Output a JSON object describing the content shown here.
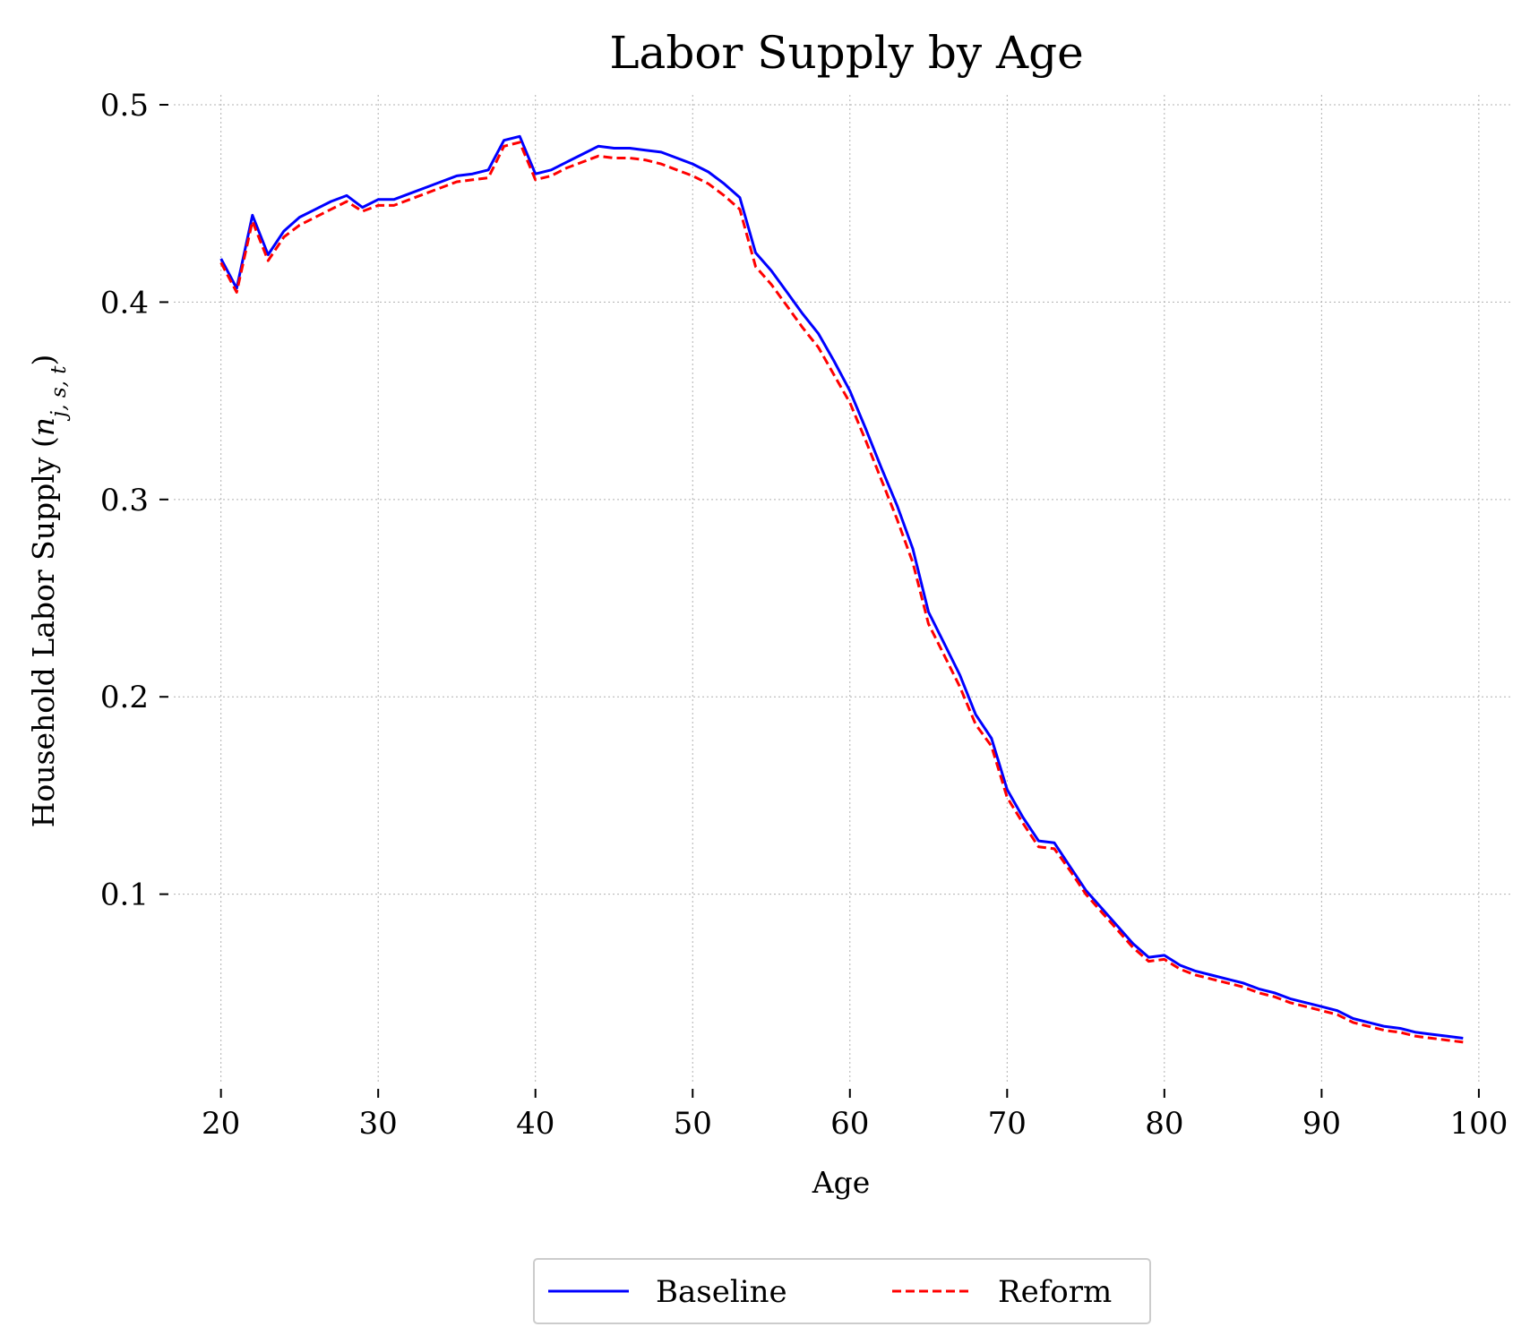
{
  "chart_data": {
    "type": "line",
    "title": "Labor Supply by Age",
    "xlabel": "Age",
    "ylabel": "Household Labor Supply (n_{j,s,t})",
    "ylabel_main": "Household Labor Supply (",
    "ylabel_sym": "n",
    "ylabel_sub": "j, s, t",
    "ylabel_close": ")",
    "xlim": [
      17,
      102
    ],
    "ylim": [
      0.005,
      0.505
    ],
    "xticks": [
      20,
      30,
      40,
      50,
      60,
      70,
      80,
      90,
      100
    ],
    "xtick_labels": [
      "20",
      "30",
      "40",
      "50",
      "60",
      "70",
      "80",
      "90",
      "100"
    ],
    "yticks": [
      0.1,
      0.2,
      0.3,
      0.4,
      0.5
    ],
    "ytick_labels": [
      "0.1",
      "0.2",
      "0.3",
      "0.4",
      "0.5"
    ],
    "grid": true,
    "legend_position": "bottom-center",
    "x": [
      20,
      21,
      22,
      23,
      24,
      25,
      26,
      27,
      28,
      29,
      30,
      31,
      32,
      33,
      34,
      35,
      36,
      37,
      38,
      39,
      40,
      41,
      42,
      43,
      44,
      45,
      46,
      47,
      48,
      49,
      50,
      51,
      52,
      53,
      54,
      55,
      56,
      57,
      58,
      59,
      60,
      61,
      62,
      63,
      64,
      65,
      66,
      67,
      68,
      69,
      70,
      71,
      72,
      73,
      74,
      75,
      76,
      77,
      78,
      79,
      80,
      81,
      82,
      83,
      84,
      85,
      86,
      87,
      88,
      89,
      90,
      91,
      92,
      93,
      94,
      95,
      96,
      97,
      98,
      99
    ],
    "series": [
      {
        "name": "Baseline",
        "color": "#0000ff",
        "style": "solid",
        "values": [
          0.422,
          0.407,
          0.444,
          0.424,
          0.436,
          0.443,
          0.447,
          0.451,
          0.454,
          0.448,
          0.452,
          0.452,
          0.455,
          0.458,
          0.461,
          0.464,
          0.465,
          0.467,
          0.482,
          0.484,
          0.465,
          0.467,
          0.471,
          0.475,
          0.479,
          0.478,
          0.478,
          0.477,
          0.476,
          0.473,
          0.47,
          0.466,
          0.46,
          0.453,
          0.425,
          0.416,
          0.405,
          0.394,
          0.384,
          0.37,
          0.355,
          0.336,
          0.316,
          0.297,
          0.275,
          0.243,
          0.227,
          0.211,
          0.191,
          0.179,
          0.153,
          0.139,
          0.127,
          0.126,
          0.114,
          0.102,
          0.093,
          0.084,
          0.075,
          0.068,
          0.069,
          0.064,
          0.061,
          0.059,
          0.057,
          0.055,
          0.052,
          0.05,
          0.047,
          0.045,
          0.043,
          0.041,
          0.037,
          0.035,
          0.033,
          0.032,
          0.03,
          0.029,
          0.028,
          0.027
        ]
      },
      {
        "name": "Reform",
        "color": "#ff0000",
        "style": "dashed",
        "values": [
          0.42,
          0.405,
          0.441,
          0.421,
          0.433,
          0.439,
          0.443,
          0.447,
          0.451,
          0.446,
          0.449,
          0.449,
          0.452,
          0.455,
          0.458,
          0.461,
          0.462,
          0.463,
          0.479,
          0.481,
          0.462,
          0.464,
          0.468,
          0.471,
          0.474,
          0.473,
          0.473,
          0.472,
          0.47,
          0.467,
          0.464,
          0.46,
          0.454,
          0.447,
          0.418,
          0.409,
          0.398,
          0.387,
          0.377,
          0.363,
          0.349,
          0.33,
          0.31,
          0.29,
          0.268,
          0.237,
          0.221,
          0.205,
          0.186,
          0.175,
          0.149,
          0.136,
          0.124,
          0.123,
          0.112,
          0.1,
          0.091,
          0.082,
          0.073,
          0.066,
          0.067,
          0.062,
          0.059,
          0.057,
          0.055,
          0.053,
          0.05,
          0.048,
          0.045,
          0.043,
          0.041,
          0.039,
          0.035,
          0.033,
          0.031,
          0.03,
          0.028,
          0.027,
          0.026,
          0.025
        ]
      }
    ]
  }
}
